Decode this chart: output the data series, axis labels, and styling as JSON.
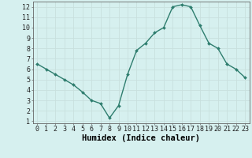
{
  "x": [
    0,
    1,
    2,
    3,
    4,
    5,
    6,
    7,
    8,
    9,
    10,
    11,
    12,
    13,
    14,
    15,
    16,
    17,
    18,
    19,
    20,
    21,
    22,
    23
  ],
  "y": [
    6.5,
    6.0,
    5.5,
    5.0,
    4.5,
    3.8,
    3.0,
    2.7,
    1.3,
    2.5,
    5.5,
    7.8,
    8.5,
    9.5,
    10.0,
    12.0,
    12.2,
    12.0,
    10.2,
    8.5,
    8.0,
    6.5,
    6.0,
    5.2
  ],
  "line_color": "#2e7d6e",
  "marker": "D",
  "marker_size": 2.0,
  "bg_color": "#d6f0ef",
  "grid_major_color": "#c8e0de",
  "grid_minor_color": "#d8eceb",
  "xlabel": "Humidex (Indice chaleur)",
  "xlim": [
    -0.5,
    23.5
  ],
  "ylim": [
    0.8,
    12.5
  ],
  "yticks": [
    1,
    2,
    3,
    4,
    5,
    6,
    7,
    8,
    9,
    10,
    11,
    12
  ],
  "xtick_labels": [
    "0",
    "1",
    "2",
    "3",
    "4",
    "5",
    "6",
    "7",
    "8",
    "9",
    "10",
    "11",
    "12",
    "13",
    "14",
    "15",
    "16",
    "17",
    "18",
    "19",
    "20",
    "21",
    "22",
    "23"
  ],
  "tick_fontsize": 6.0,
  "xlabel_fontsize": 7.5,
  "line_width": 1.0
}
